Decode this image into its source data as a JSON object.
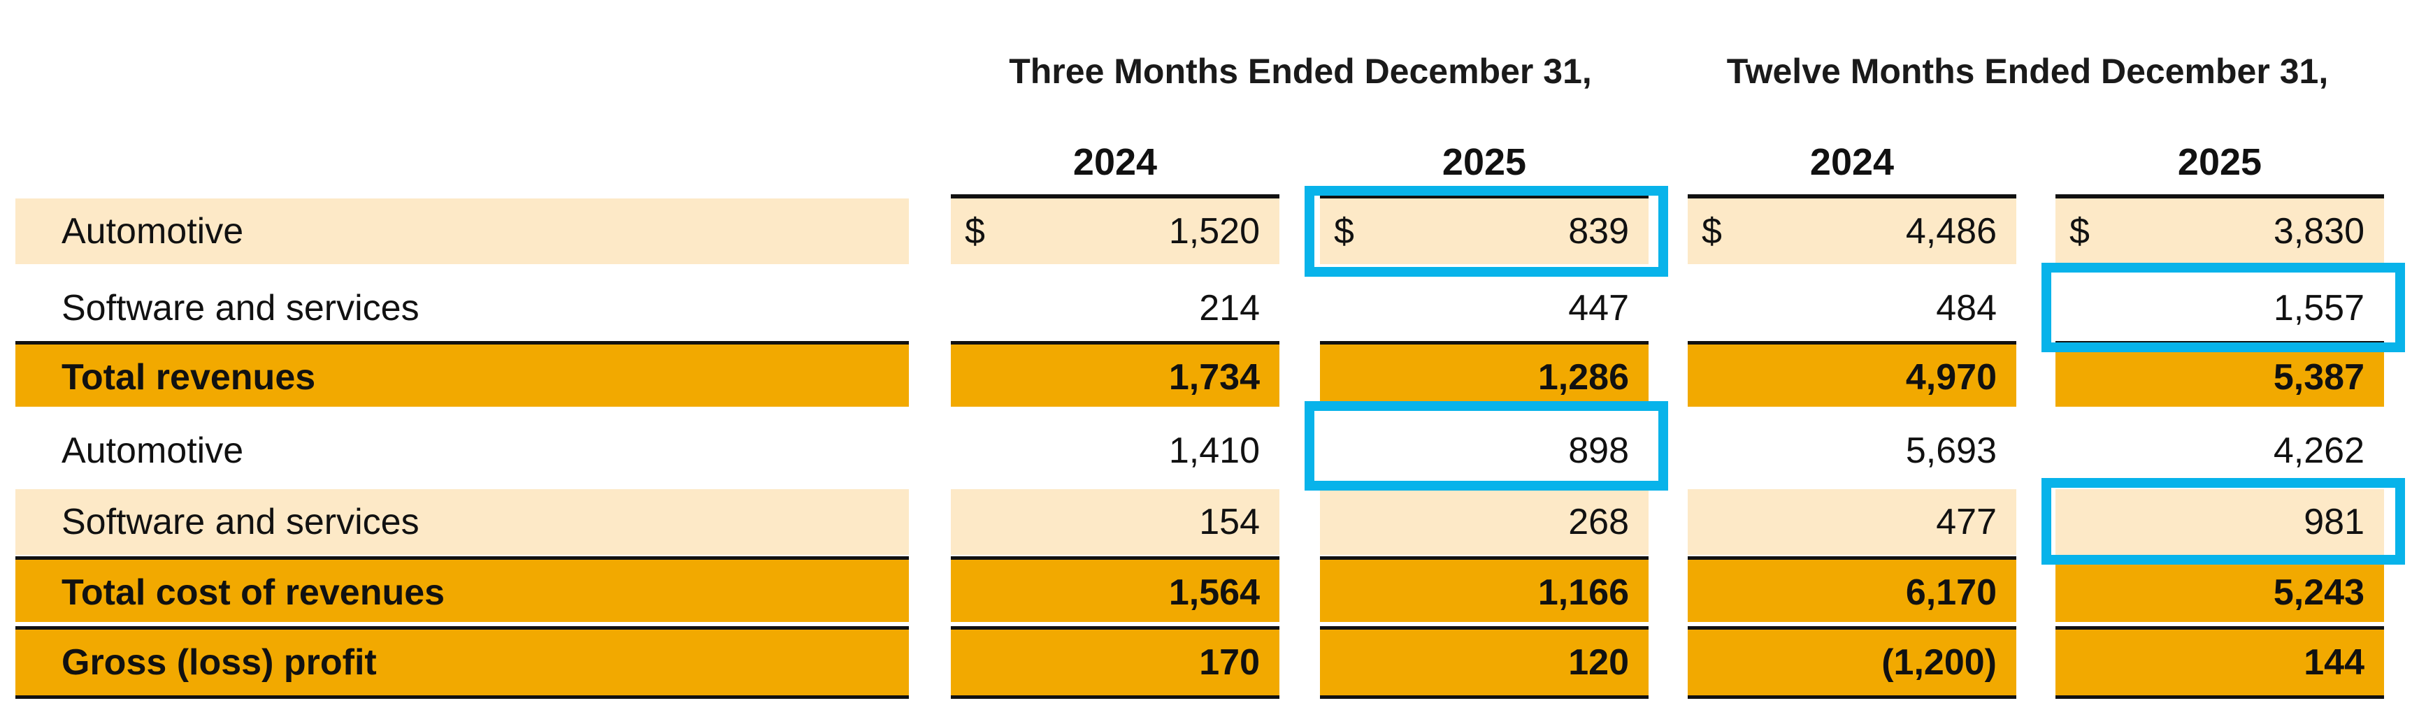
{
  "headers": {
    "group_three_months": "Three Months Ended December 31,",
    "group_twelve_months": "Twelve Months Ended December 31,",
    "years": [
      "2024",
      "2025",
      "2024",
      "2025"
    ]
  },
  "rows": [
    {
      "label": "Automotive",
      "values": [
        "1,520",
        "839",
        "4,486",
        "3,830"
      ],
      "currency": "$"
    },
    {
      "label": "Software and services",
      "values": [
        "214",
        "447",
        "484",
        "1,557"
      ]
    },
    {
      "label": "Total revenues",
      "values": [
        "1,734",
        "1,286",
        "4,970",
        "5,387"
      ]
    },
    {
      "label": "Automotive",
      "values": [
        "1,410",
        "898",
        "5,693",
        "4,262"
      ]
    },
    {
      "label": "Software and services",
      "values": [
        "154",
        "268",
        "477",
        "981"
      ]
    },
    {
      "label": "Total cost of revenues",
      "values": [
        "1,564",
        "1,166",
        "6,170",
        "5,243"
      ]
    },
    {
      "label": "Gross (loss) profit",
      "values": [
        "170",
        "120",
        "(1,200)",
        "144"
      ]
    }
  ],
  "colors": {
    "light_row": "#fde9c7",
    "dark_row": "#f2a900",
    "highlight_box": "#08b3ea"
  }
}
